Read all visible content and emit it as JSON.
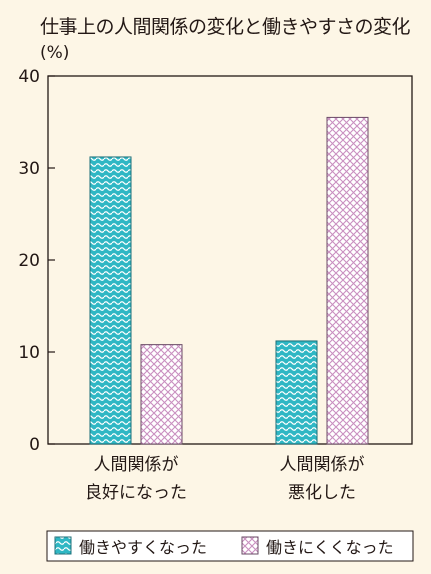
{
  "chart_data": {
    "type": "bar",
    "title": "仕事上の人間関係の変化と働きやすさの変化",
    "ylabel": "(%)",
    "xlabel": "",
    "ylim": [
      0,
      40
    ],
    "yticks": [
      "0",
      "10",
      "20",
      "30",
      "40"
    ],
    "categories": [
      [
        "人間関係が",
        "良好になった"
      ],
      [
        "人間関係が",
        "悪化した"
      ]
    ],
    "series": [
      {
        "name": "働きやすくなった",
        "values": [
          31.2,
          11.2
        ],
        "color": "#2fb7c4",
        "pattern": "wave"
      },
      {
        "name": "働きにくくなった",
        "values": [
          10.8,
          35.5
        ],
        "color": "#e6b6dd",
        "pattern": "crosshatch"
      }
    ],
    "grid": false,
    "legend_position": "bottom"
  }
}
